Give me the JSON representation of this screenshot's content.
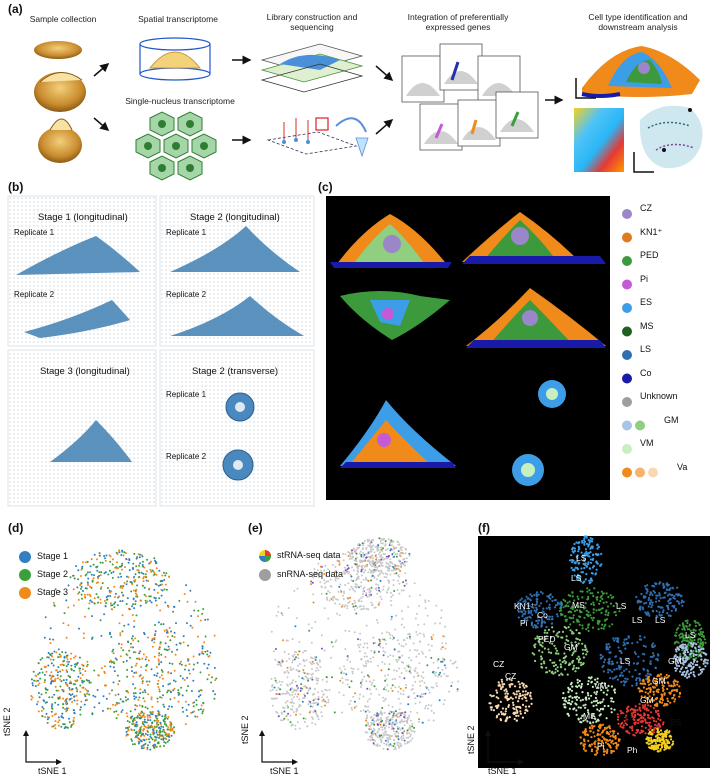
{
  "panels": {
    "a": {
      "label": "(a)",
      "steps": [
        "Sample collection",
        "Spatial transcriptome",
        "Single-nucleus transcriptome",
        "Library construction and sequencing",
        "Integration of preferentially expressed genes",
        "Cell type identification and downstream analysis"
      ]
    },
    "b": {
      "label": "(b)",
      "sections": [
        "Stage 1 (longitudinal)",
        "Stage 2 (longitudinal)",
        "Stage 3 (longitudinal)",
        "Stage 2 (transverse)"
      ],
      "replicates": [
        "Replicate 1",
        "Replicate 2"
      ]
    },
    "c": {
      "label": "(c)",
      "legend": [
        {
          "name": "CZ",
          "colors": [
            "#9b86c9"
          ]
        },
        {
          "name": "KN1⁺",
          "colors": [
            "#e07a1f"
          ]
        },
        {
          "name": "PED",
          "colors": [
            "#3c9a3c"
          ]
        },
        {
          "name": "Pi",
          "colors": [
            "#c45ad6"
          ]
        },
        {
          "name": "ES",
          "colors": [
            "#3d9de6"
          ]
        },
        {
          "name": "MS",
          "colors": [
            "#1f5f1f"
          ]
        },
        {
          "name": "LS",
          "colors": [
            "#2f6fb0"
          ]
        },
        {
          "name": "Co",
          "colors": [
            "#1a1aa8"
          ]
        },
        {
          "name": "Unknown",
          "colors": [
            "#9e9e9e"
          ]
        },
        {
          "name": "GM",
          "colors": [
            "#a9c4e4",
            "#8fcf7f"
          ]
        },
        {
          "name": "VM",
          "colors": [
            "#c8efc0"
          ]
        },
        {
          "name": "Va",
          "colors": [
            "#f08a1a",
            "#f6b36b",
            "#f8d9b0"
          ]
        }
      ]
    },
    "d": {
      "label": "(d)",
      "legend": [
        {
          "name": "Stage 1",
          "color": "#2f7fc1"
        },
        {
          "name": "Stage 2",
          "color": "#3aa03a"
        },
        {
          "name": "Stage 3",
          "color": "#f08a1a"
        }
      ],
      "xlabel": "tSNE 1",
      "ylabel": "tSNE 2"
    },
    "e": {
      "label": "(e)",
      "legend": [
        "stRNA-seq data",
        "snRNA-seq data"
      ],
      "xlabel": "tSNE 1",
      "ylabel": "tSNE 2"
    },
    "f": {
      "label": "(f)",
      "clusters": [
        "LS",
        "LS",
        "KN1⁺",
        "Co",
        "MS",
        "LS",
        "Pi",
        "LS",
        "LS",
        "LS",
        "PED",
        "GM",
        "LS",
        "GM",
        "CZ",
        "CZ",
        "VM",
        "GM",
        "GM",
        "MS",
        "ES",
        "Pi",
        "Ph",
        "ES"
      ],
      "xlabel": "tSNE 1",
      "ylabel": "tSNE 2"
    }
  },
  "colors": {
    "background": "#ffffff",
    "tissue_blue": "#3f7fb3",
    "panel_black": "#000000"
  }
}
